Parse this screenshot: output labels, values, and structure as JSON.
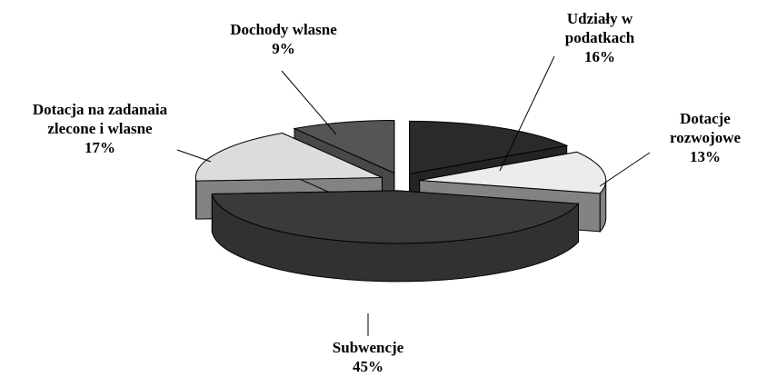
{
  "chart_data": {
    "type": "pie3d",
    "categories": [
      "Udziały w podatkach",
      "Dotacje rozwojowe",
      "Subwencje",
      "Dotacja na zadanaia zlecone i wlasne",
      "Dochody wlasne"
    ],
    "values": [
      16,
      13,
      45,
      17,
      9
    ],
    "value_labels": [
      "16%",
      "13%",
      "45%",
      "17%",
      "9%"
    ],
    "colors": [
      "#2a2a2a",
      "#ececec",
      "#3a3a3a",
      "#dcdcdc",
      "#555555"
    ]
  }
}
